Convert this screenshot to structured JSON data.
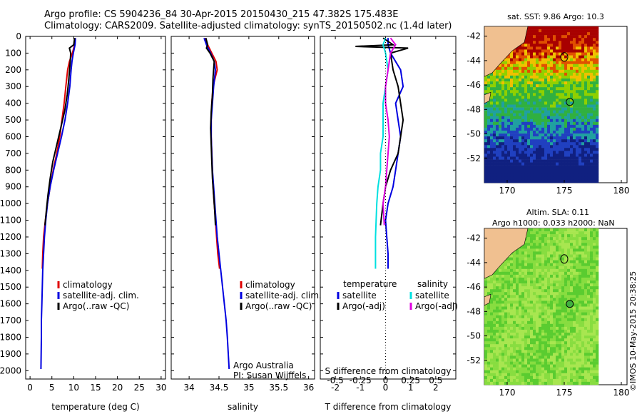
{
  "header": {
    "line1": "Argo profile: CS 5904236_84 30-Apr-2015 20150430_215 47.382S 175.483E",
    "line2": "Climatology: CARS2009. Satellite-adjusted climatology: synTS_20150502.nc (1.4d later)"
  },
  "chart_data": [
    {
      "type": "line",
      "panel": "temperature",
      "xlabel": "temperature (deg C)",
      "ylabel": "",
      "xlim": [
        -1,
        31
      ],
      "ylim": [
        2050,
        0
      ],
      "xticks": [
        "0",
        "5",
        "10",
        "15",
        "20",
        "25",
        "30"
      ],
      "yticks": [
        "0",
        "100",
        "200",
        "300",
        "400",
        "500",
        "600",
        "700",
        "800",
        "900",
        "1000",
        "1100",
        "1200",
        "1300",
        "1400",
        "1500",
        "1600",
        "1700",
        "1800",
        "1900",
        "2000"
      ],
      "legend": [
        "climatology",
        "satellite-adj. clim.",
        "Argo(..raw -QC)"
      ],
      "legend_position": "lower-center",
      "series": [
        {
          "name": "climatology",
          "color": "#e00000",
          "x": [
            10.3,
            10.2,
            9.7,
            9.0,
            8.6,
            8.2,
            7.8,
            7.3,
            6.8,
            6.1,
            5.3,
            4.6,
            4.0,
            3.5,
            3.1,
            2.9,
            2.8
          ],
          "y": [
            10,
            50,
            100,
            150,
            200,
            300,
            400,
            500,
            600,
            700,
            800,
            900,
            1000,
            1100,
            1200,
            1300,
            1390
          ]
        },
        {
          "name": "satellite-adj. clim.",
          "color": "#0000e0",
          "x": [
            10.4,
            10.3,
            9.9,
            9.6,
            9.4,
            9.1,
            8.6,
            8.0,
            7.2,
            6.3,
            5.4,
            4.6,
            4.0,
            3.6,
            3.3,
            3.1,
            2.9,
            2.8,
            2.7,
            2.6,
            2.6,
            2.5
          ],
          "y": [
            10,
            50,
            100,
            150,
            200,
            300,
            400,
            500,
            600,
            700,
            800,
            900,
            1000,
            1100,
            1200,
            1300,
            1400,
            1500,
            1600,
            1700,
            1800,
            1990
          ]
        },
        {
          "name": "Argo(..raw -QC)",
          "color": "#000000",
          "x": [
            10.2,
            10.0,
            9.0,
            9.3,
            9.2,
            8.9,
            8.5,
            7.9,
            7.0,
            6.1,
            5.2,
            4.6,
            4.1,
            3.7,
            3.4
          ],
          "y": [
            10,
            50,
            70,
            100,
            150,
            250,
            350,
            450,
            550,
            650,
            750,
            850,
            950,
            1050,
            1130
          ]
        }
      ]
    },
    {
      "type": "line",
      "panel": "salinity",
      "xlabel": "salinity",
      "ylabel": "",
      "xlim": [
        33.7,
        36.1
      ],
      "ylim": [
        2050,
        0
      ],
      "xticks": [
        "34",
        "34.5",
        "35",
        "35.5",
        "36"
      ],
      "legend": [
        "climatology",
        "satellite-adj. clim.",
        "Argo(..raw -QC)"
      ],
      "legend_position": "lower-right",
      "annotation": [
        "Argo Australia",
        "PI: Susan Wijffels"
      ],
      "series": [
        {
          "name": "climatology",
          "color": "#e00000",
          "x": [
            34.27,
            34.31,
            34.38,
            34.45,
            34.47,
            34.4,
            34.38,
            34.37,
            34.37,
            34.38,
            34.39,
            34.4,
            34.42,
            34.44,
            34.46,
            34.48,
            34.51
          ],
          "y": [
            10,
            50,
            100,
            150,
            200,
            300,
            400,
            500,
            600,
            700,
            800,
            900,
            1000,
            1100,
            1200,
            1300,
            1390
          ]
        },
        {
          "name": "satellite-adj. clim.",
          "color": "#0000e0",
          "x": [
            34.25,
            34.29,
            34.36,
            34.42,
            34.44,
            34.41,
            34.39,
            34.37,
            34.37,
            34.38,
            34.39,
            34.41,
            34.43,
            34.45,
            34.47,
            34.5,
            34.53,
            34.56,
            34.59,
            34.62,
            34.64,
            34.67
          ],
          "y": [
            10,
            50,
            100,
            150,
            200,
            300,
            400,
            500,
            600,
            700,
            800,
            900,
            1000,
            1100,
            1200,
            1300,
            1400,
            1500,
            1600,
            1700,
            1800,
            1990
          ]
        },
        {
          "name": "Argo(..raw -QC)",
          "color": "#000000",
          "x": [
            34.28,
            34.31,
            34.29,
            34.35,
            34.42,
            34.4,
            34.39,
            34.37,
            34.36,
            34.37,
            34.38,
            34.39,
            34.41,
            34.43,
            34.44
          ],
          "y": [
            10,
            50,
            70,
            100,
            150,
            250,
            350,
            450,
            550,
            650,
            750,
            850,
            950,
            1050,
            1130
          ]
        }
      ]
    },
    {
      "type": "line",
      "panel": "difference",
      "xlabel": "T difference from climatology",
      "xlabel_top": "S difference from climatology",
      "xlim": [
        -2.6,
        2.8
      ],
      "ylim": [
        2050,
        0
      ],
      "xticks": [
        "-2",
        "-1",
        "0",
        "1",
        "2"
      ],
      "xticks_salinity": [
        "-0.5",
        "-0.25",
        "0",
        "0.25",
        "0.5"
      ],
      "legend_temperature": [
        "temperature",
        "satellite",
        "Argo(-adj)"
      ],
      "legend_salinity": [
        "salinity",
        "satellite",
        "Argo(-adj)"
      ],
      "series": [
        {
          "name": "satellite",
          "color": "#0000e0",
          "x": [
            0.1,
            0.1,
            0.2,
            0.6,
            0.7,
            0.4,
            0.5,
            0.6,
            0.5,
            0.4,
            0.3,
            0.1,
            0.0,
            0.05,
            0.1,
            0.1
          ],
          "y": [
            10,
            50,
            100,
            200,
            300,
            400,
            500,
            600,
            700,
            800,
            900,
            1000,
            1100,
            1200,
            1300,
            1390
          ]
        },
        {
          "name": "Argo(-adj)",
          "color": "#000000",
          "x": [
            -0.1,
            0.3,
            -1.2,
            0.9,
            0.2,
            0.3,
            0.5,
            0.6,
            0.7,
            0.6,
            0.5,
            0.2,
            0.0,
            -0.1,
            -0.2
          ],
          "y": [
            10,
            50,
            60,
            70,
            100,
            200,
            300,
            400,
            500,
            600,
            700,
            800,
            900,
            1000,
            1130
          ]
        },
        {
          "name": "satellite",
          "color": "#00e0e0",
          "x": [
            0.0,
            -0.1,
            0.0,
            0.1,
            0.0,
            -0.1,
            -0.1,
            -0.1,
            -0.2,
            -0.2,
            -0.3,
            -0.35,
            -0.4,
            -0.4
          ],
          "y": [
            10,
            50,
            100,
            200,
            300,
            400,
            500,
            600,
            700,
            800,
            900,
            1000,
            1200,
            1390
          ]
        },
        {
          "name": "Argo(-adj)",
          "color": "#e000e0",
          "x": [
            0.2,
            0.4,
            0.2,
            0.1,
            0.0,
            0.0,
            0.1,
            0.15,
            0.1,
            0.05,
            0.0,
            -0.1,
            -0.05
          ],
          "y": [
            10,
            50,
            100,
            200,
            300,
            400,
            500,
            600,
            700,
            800,
            900,
            1000,
            1130
          ]
        }
      ]
    }
  ],
  "maps": {
    "sst_title": "sat. SST: 9.86 Argo: 10.3",
    "sla_title_1": "Altim. SLA: 0.11",
    "sla_title_2": "Argo h1000: 0.033 h2000: NaN",
    "lat_ticks": [
      "-42",
      "-44",
      "-46",
      "-48",
      "-50",
      "-52"
    ],
    "lon_ticks": [
      "170",
      "175",
      "180"
    ]
  },
  "footer": "©IMOS 10-May-2015 20:38:25"
}
